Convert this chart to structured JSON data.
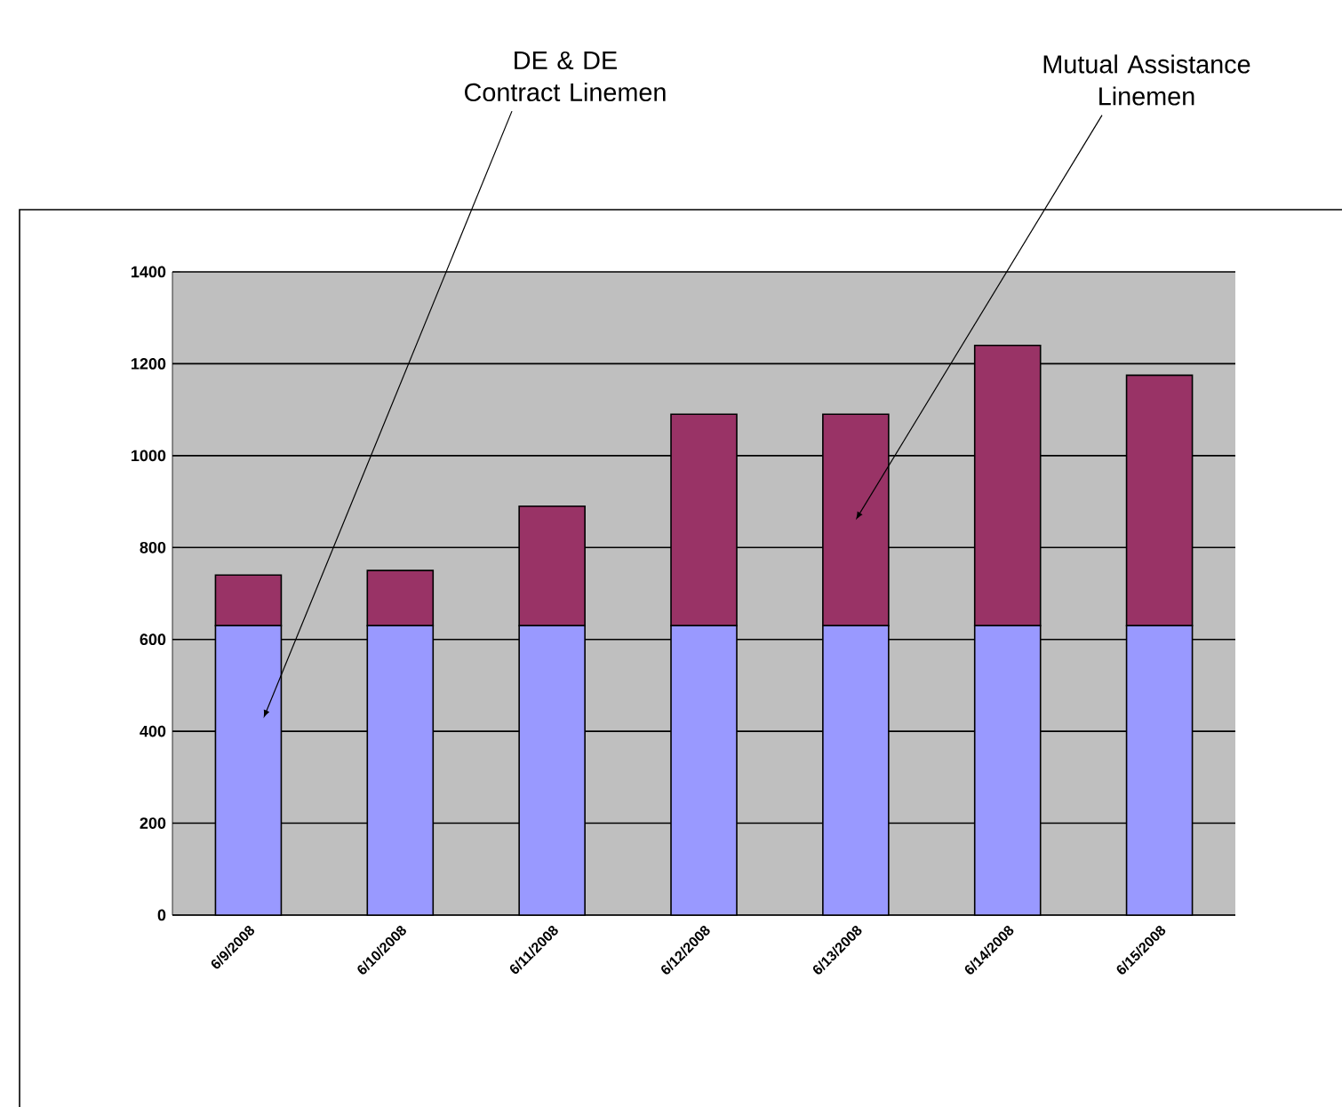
{
  "chart_data": {
    "type": "bar",
    "stacked": true,
    "categories": [
      "6/9/2008",
      "6/10/2008",
      "6/11/2008",
      "6/12/2008",
      "6/13/2008",
      "6/14/2008",
      "6/15/2008"
    ],
    "series": [
      {
        "name": "DE & DE Contract Linemen",
        "color": "#9999ff",
        "values": [
          630,
          630,
          630,
          630,
          630,
          630,
          630
        ]
      },
      {
        "name": "Mutual Assistance Linemen",
        "color": "#993366",
        "values": [
          110,
          120,
          260,
          460,
          460,
          610,
          545
        ]
      }
    ],
    "ylim": [
      0,
      1400
    ],
    "yticks": [
      0,
      200,
      400,
      600,
      800,
      1000,
      1200,
      1400
    ],
    "grid": "y",
    "legend": false
  }
}
